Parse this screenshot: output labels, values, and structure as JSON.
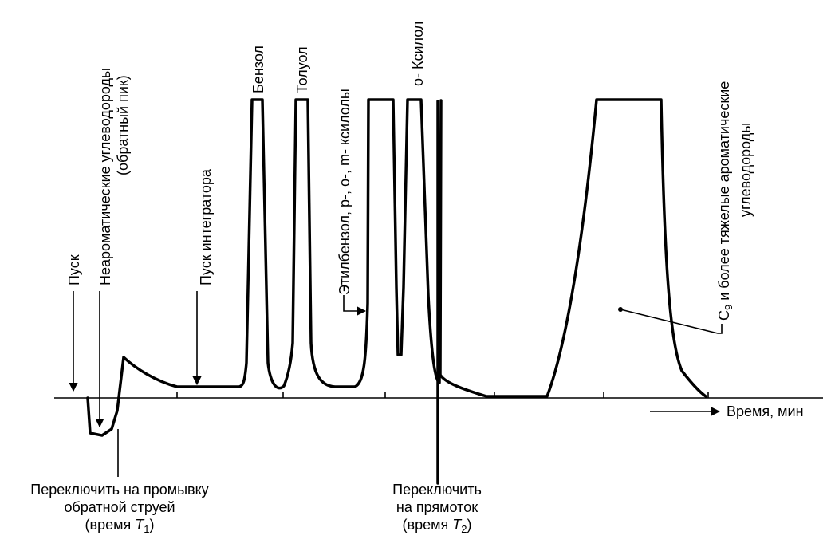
{
  "labels": {
    "start": "Пуск",
    "nonaromatic_line1": "Неароматические углеводороды",
    "nonaromatic_line2": "(обратный пик)",
    "integrator_start": "Пуск интегратора",
    "benzene": "Бензол",
    "toluene": "Толуол",
    "ethylbenzene_xylenes": "Этилбензол, p-, o-, m- ксилолы",
    "o_xylene": "o- Ксилол",
    "c9_prefix": "C",
    "c9_sub": "9",
    "c9_rest": " и более тяжелые ароматические",
    "c9_line2": "углеводороды",
    "time_axis": "Время, мин",
    "backflush_line1": "Переключить на промывку",
    "backflush_line2": "обратной струей",
    "backflush_line3_prefix": "(время ",
    "backflush_T": "T",
    "backflush_sub": "1",
    "backflush_suffix": ")",
    "forward_line1": "Переключить",
    "forward_line2": "на прямоток",
    "forward_line3_prefix": "(время ",
    "forward_T": "T",
    "forward_sub": "2",
    "forward_suffix": ")"
  }
}
